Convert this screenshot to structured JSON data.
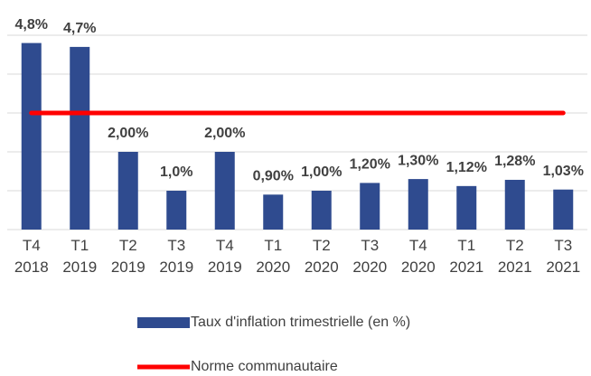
{
  "chart_data": {
    "type": "bar",
    "categories": [
      [
        "T4",
        "2018"
      ],
      [
        "T1",
        "2019"
      ],
      [
        "T2",
        "2019"
      ],
      [
        "T3",
        "2019"
      ],
      [
        "T4",
        "2019"
      ],
      [
        "T1",
        "2020"
      ],
      [
        "T2",
        "2020"
      ],
      [
        "T3",
        "2020"
      ],
      [
        "T4",
        "2020"
      ],
      [
        "T1",
        "2021"
      ],
      [
        "T2",
        "2021"
      ],
      [
        "T3",
        "2021"
      ]
    ],
    "series": [
      {
        "name": "Taux d'inflation trimestrielle (en %)",
        "type": "bar",
        "color": "#2f4b8f",
        "values": [
          4.8,
          4.7,
          2.0,
          1.0,
          2.0,
          0.9,
          1.0,
          1.2,
          1.3,
          1.12,
          1.28,
          1.03
        ],
        "value_labels": [
          "4,8%",
          "4,7%",
          "2,00%",
          "1,0%",
          "2,00%",
          "0,90%",
          "1,00%",
          "1,20%",
          "1,30%",
          "1,12%",
          "1,28%",
          "1,03%"
        ]
      },
      {
        "name": "Norme communautaire",
        "type": "line",
        "color": "#ff0000",
        "values": [
          3,
          3,
          3,
          3,
          3,
          3,
          3,
          3,
          3,
          3,
          3,
          3
        ]
      }
    ],
    "ylim": [
      0,
      5
    ],
    "yticks": [
      0,
      1,
      2,
      3,
      4,
      5
    ],
    "grid": true,
    "legend": "bottom"
  }
}
